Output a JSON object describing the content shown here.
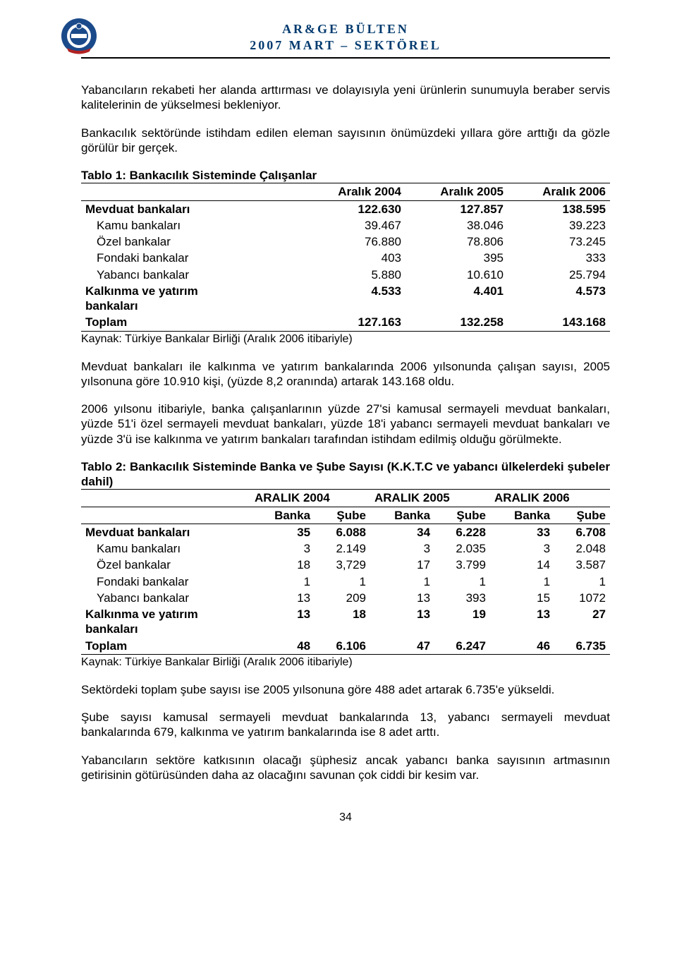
{
  "header": {
    "line1": "AR&GE BÜLTEN",
    "line2": "2007 MART – SEKTÖREL",
    "logo_colors": {
      "outer": "#1b4a8a",
      "inner": "#ffffff",
      "ribbon": "#b22222"
    }
  },
  "paragraphs": {
    "p1": "Yabancıların rekabeti her alanda arttırması ve dolayısıyla yeni ürünlerin sunumuyla beraber servis kalitelerinin de yükselmesi bekleniyor.",
    "p2": "Bankacılık sektöründe istihdam edilen eleman sayısının önümüzdeki yıllara göre arttığı da gözle görülür bir gerçek.",
    "p3": "Mevduat bankaları ile kalkınma ve yatırım bankalarında 2006 yılsonunda çalışan sayısı, 2005 yılsonuna göre 10.910 kişi, (yüzde 8,2 oranında) artarak 143.168 oldu.",
    "p4": "2006 yılsonu itibariyle, banka çalışanlarının yüzde 27'si kamusal sermayeli mevduat bankaları, yüzde 51'i özel sermayeli mevduat bankaları, yüzde 18'i yabancı sermayeli mevduat bankaları ve yüzde 3'ü ise kalkınma ve yatırım bankaları tarafından istihdam edilmiş olduğu görülmekte.",
    "p5": "Sektördeki toplam şube sayısı ise 2005 yılsonuna göre 488 adet artarak 6.735'e yükseldi.",
    "p6": "Şube sayısı kamusal sermayeli mevduat bankalarında 13, yabancı sermayeli mevduat bankalarında 679, kalkınma ve yatırım bankalarında ise 8 adet arttı.",
    "p7": "Yabancıların sektöre katkısının olacağı şüphesiz ancak yabancı banka sayısının artmasının getirisinin götürüsünden daha az olacağını savunan çok ciddi bir kesim var."
  },
  "table1": {
    "title": "Tablo 1: Bankacılık Sisteminde Çalışanlar",
    "headers": [
      "",
      "Aralık 2004",
      "Aralık 2005",
      "Aralık 2006"
    ],
    "rows": [
      {
        "label": "Mevduat bankaları",
        "vals": [
          "122.630",
          "127.857",
          "138.595"
        ],
        "bold": true
      },
      {
        "label": "Kamu bankaları",
        "vals": [
          "39.467",
          "38.046",
          "39.223"
        ],
        "indent": true
      },
      {
        "label": "Özel bankalar",
        "vals": [
          "76.880",
          "78.806",
          "73.245"
        ],
        "indent": true
      },
      {
        "label": "Fondaki bankalar",
        "vals": [
          "403",
          "395",
          "333"
        ],
        "indent": true
      },
      {
        "label": "Yabancı bankalar",
        "vals": [
          "5.880",
          "10.610",
          "25.794"
        ],
        "indent": true
      },
      {
        "label": "Kalkınma ve yatırım bankaları",
        "vals": [
          "4.533",
          "4.401",
          "4.573"
        ],
        "bold": true,
        "wrap": true
      },
      {
        "label": "Toplam",
        "vals": [
          "127.163",
          "132.258",
          "143.168"
        ],
        "bold": true,
        "last": true
      }
    ],
    "source": "Kaynak: Türkiye Bankalar Birliği (Aralık 2006 itibariyle)"
  },
  "table2": {
    "title": "Tablo 2: Bankacılık Sisteminde Banka ve Şube Sayısı (K.K.T.C ve yabancı ülkelerdeki şubeler dahil)",
    "top_headers": [
      "",
      "ARALIK 2004",
      "ARALIK 2005",
      "ARALIK 2006"
    ],
    "sub_headers": [
      "",
      "Banka",
      "Şube",
      "Banka",
      "Şube",
      "Banka",
      "Şube"
    ],
    "rows": [
      {
        "label": "Mevduat bankaları",
        "vals": [
          "35",
          "6.088",
          "34",
          "6.228",
          "33",
          "6.708"
        ],
        "bold": true
      },
      {
        "label": "Kamu bankaları",
        "vals": [
          "3",
          "2.149",
          "3",
          "2.035",
          "3",
          "2.048"
        ],
        "indent": true
      },
      {
        "label": "Özel bankalar",
        "vals": [
          "18",
          "3,729",
          "17",
          "3.799",
          "14",
          "3.587"
        ],
        "indent": true
      },
      {
        "label": "Fondaki bankalar",
        "vals": [
          "1",
          "1",
          "1",
          "1",
          "1",
          "1"
        ],
        "indent": true
      },
      {
        "label": "Yabancı bankalar",
        "vals": [
          "13",
          "209",
          "13",
          "393",
          "15",
          "1072"
        ],
        "indent": true
      },
      {
        "label": "Kalkınma ve yatırım bankaları",
        "vals": [
          "13",
          "18",
          "13",
          "19",
          "13",
          "27"
        ],
        "bold": true,
        "wrap": true
      },
      {
        "label": "Toplam",
        "vals": [
          "48",
          "6.106",
          "47",
          "6.247",
          "46",
          "6.735"
        ],
        "bold": true,
        "last": true
      }
    ],
    "source": "Kaynak: Türkiye Bankalar Birliği (Aralık 2006 itibariyle)"
  },
  "page_number": "34"
}
